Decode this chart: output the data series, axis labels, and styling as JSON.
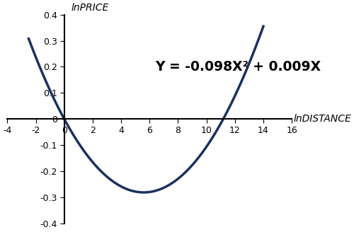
{
  "a": 0.098,
  "b": -0.009,
  "x_min": -4,
  "x_max": 16,
  "y_min": -0.4,
  "y_max": 0.4,
  "x_ticks": [
    -4,
    -2,
    0,
    2,
    4,
    6,
    8,
    10,
    12,
    14,
    16
  ],
  "y_ticks": [
    -0.4,
    -0.3,
    -0.2,
    -0.1,
    0,
    0.1,
    0.2,
    0.3,
    0.4
  ],
  "xlabel": "lnDISTANCE",
  "ylabel": "lnPRICE",
  "equation": "Y = -0.098X² + 0.009X",
  "curve_color": "#1B3060",
  "curve_linewidth": 2.5,
  "background_color": "#ffffff",
  "equation_fontsize": 13.5,
  "curve_x_start": -2.5,
  "curve_x_end": 14.0
}
